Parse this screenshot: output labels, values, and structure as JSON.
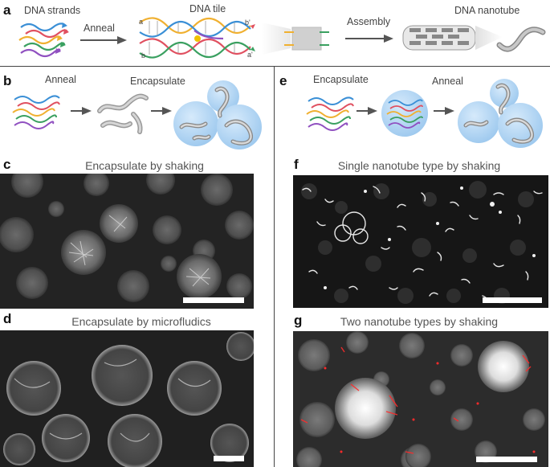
{
  "panels": {
    "a": {
      "label": "a",
      "strands_text": "DNA strands",
      "anneal_text": "Anneal",
      "tile_text": "DNA tile",
      "assembly_text": "Assembly",
      "nanotube_text": "DNA nanotube",
      "end_a": "a",
      "end_b": "b",
      "end_bp": "b'",
      "end_ap": "a'"
    },
    "b": {
      "label": "b",
      "step1": "Anneal",
      "step2": "Encapsulate"
    },
    "e": {
      "label": "e",
      "step1": "Encapsulate",
      "step2": "Anneal"
    },
    "c": {
      "label": "c",
      "title": "Encapsulate by shaking"
    },
    "d": {
      "label": "d",
      "title": "Encapsulate by microfludics"
    },
    "f": {
      "label": "f",
      "title": "Single nanotube type by shaking"
    },
    "g": {
      "label": "g",
      "title": "Two nanotube types by shaking"
    }
  },
  "colors": {
    "strand_blue": "#3a8fd6",
    "strand_red": "#e05060",
    "strand_yellow": "#f0b030",
    "strand_green": "#3aa060",
    "strand_purple": "#9050c0",
    "droplet": "#a8cff0",
    "overlay_red": "#ff2a2a"
  }
}
